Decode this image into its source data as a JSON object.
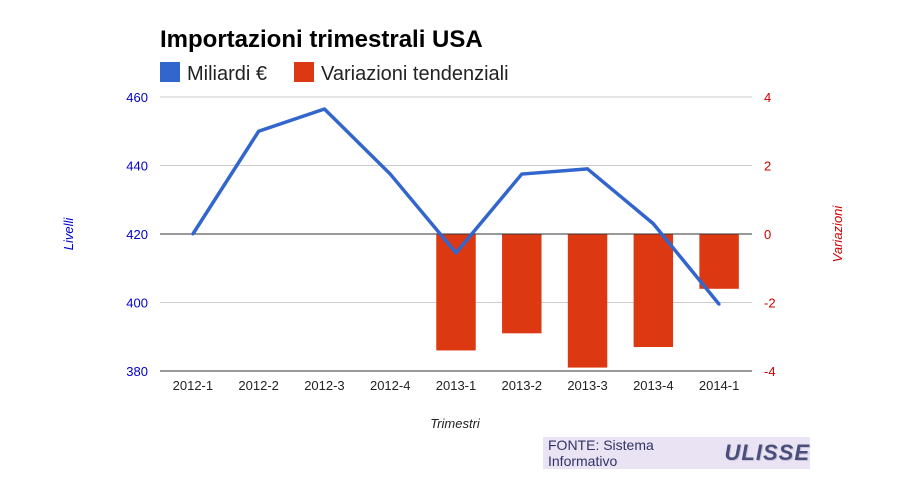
{
  "chart_data": {
    "type": "bar+line",
    "title": "Importazioni trimestrali USA",
    "categories": [
      "2012-1",
      "2012-2",
      "2012-3",
      "2012-4",
      "2013-1",
      "2013-2",
      "2013-3",
      "2013-4",
      "2014-1"
    ],
    "series": [
      {
        "name": "Miliardi €",
        "type": "line",
        "axis": "left",
        "color": "#3366cc",
        "values": [
          420,
          450,
          456.5,
          437.5,
          414.5,
          437.5,
          439,
          423,
          399.5
        ]
      },
      {
        "name": "Variazioni tendenziali",
        "type": "bar",
        "axis": "right",
        "color": "#dc3912",
        "values": [
          null,
          null,
          null,
          null,
          -3.4,
          -2.9,
          -3.9,
          -3.3,
          -1.6
        ]
      }
    ],
    "xlabel": "Trimestri",
    "ylabel_left": "Livelli",
    "ylabel_right": "Variazioni",
    "ylim_left": [
      380,
      460
    ],
    "yticks_left": [
      380,
      400,
      420,
      440,
      460
    ],
    "ylim_right": [
      -4,
      4
    ],
    "yticks_right": [
      -4,
      -2,
      0,
      2,
      4
    ],
    "grid": true,
    "legend_position": "top-left"
  },
  "source": {
    "text": "FONTE: Sistema Informativo",
    "logo": "ULISSE"
  }
}
